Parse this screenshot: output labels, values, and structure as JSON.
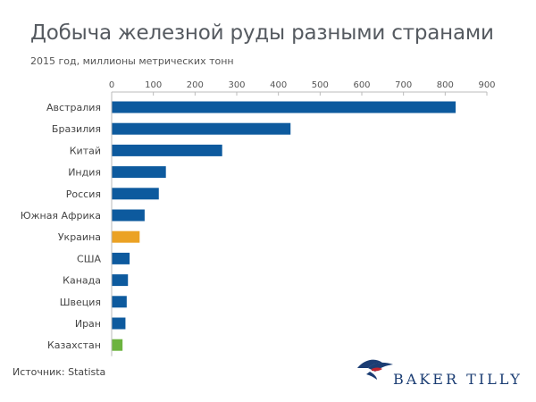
{
  "title": "Добыча железной руды разными странами",
  "subtitle": "2015 год, миллионы метрических тонн",
  "source": "Источник: Statista",
  "logo": {
    "text": "BAKER TILLY",
    "icon": "eagle-icon"
  },
  "colors": {
    "default_bar": "#0d5a9e",
    "highlight_ukraine": "#eba224",
    "highlight_kazakhstan": "#6cb33f",
    "axis": "#bbbbbb",
    "grid": "#e3e3e3",
    "logo": "#1b3d73",
    "logo_accent": "#c0252e"
  },
  "chart_data": {
    "type": "bar",
    "orientation": "horizontal",
    "title": "Добыча железной руды разными странами",
    "subtitle": "2015 год, миллионы метрических тонн",
    "xlabel": "",
    "ylabel": "",
    "xlim": [
      0,
      900
    ],
    "ticks": [
      0,
      100,
      200,
      300,
      400,
      500,
      600,
      700,
      800,
      900
    ],
    "axis_position": "top",
    "grid": false,
    "categories": [
      "Австралия",
      "Бразилия",
      "Китай",
      "Индия",
      "Россия",
      "Южная Африка",
      "Украина",
      "США",
      "Канада",
      "Швеция",
      "Иран",
      "Казахстан"
    ],
    "values": [
      824,
      428,
      264,
      129,
      112,
      78,
      66,
      42,
      38,
      35,
      32,
      25
    ],
    "bar_colors": [
      "#0d5a9e",
      "#0d5a9e",
      "#0d5a9e",
      "#0d5a9e",
      "#0d5a9e",
      "#0d5a9e",
      "#eba224",
      "#0d5a9e",
      "#0d5a9e",
      "#0d5a9e",
      "#0d5a9e",
      "#6cb33f"
    ]
  }
}
